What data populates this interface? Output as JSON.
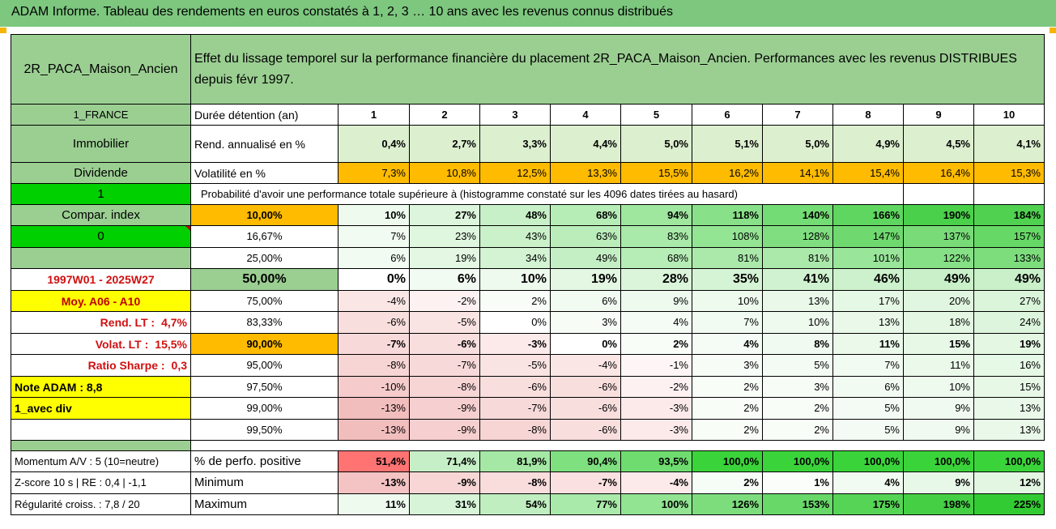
{
  "title": "ADAM Informe. Tableau des rendements en euros constatés à 1, 2, 3 … 10 ans avec les revenus connus distribués",
  "fund_name": "2R_PACA_Maison_Ancien",
  "description": "Effet du lissage temporel sur la performance financière du placement 2R_PACA_Maison_Ancien. Performances avec les revenus DISTRIBUES depuis févr 1997.",
  "left_col": {
    "zone": "1_FRANCE",
    "category": "Immobilier",
    "type": "Dividende",
    "flag1": "1",
    "compar_index": "Compar. index",
    "flag0": "0",
    "period": "1997W01 - 2025W27",
    "moy": "Moy. A06 - A10",
    "rend_lt_label": "Rend. LT :",
    "rend_lt_value": "4,7%",
    "volat_lt_label": "Volat. LT :",
    "volat_lt_value": "15,5%",
    "sharpe_label": "Ratio Sharpe :",
    "sharpe_value": "0,3",
    "note": "Note ADAM : 8,8",
    "div": "1_avec div",
    "momentum": "Momentum A/V : 5 (10=neutre)",
    "zscore": "Z-score 10 s | RE : 0,4 | -1,1",
    "regularite": "Régularité croiss. : 7,8 / 20"
  },
  "header": {
    "duree_label": "Durée détention (an)",
    "years": [
      "1",
      "2",
      "3",
      "4",
      "5",
      "6",
      "7",
      "8",
      "9",
      "10"
    ],
    "rend_label": "Rend. annualisé en %",
    "rend": [
      "0,4%",
      "2,7%",
      "3,3%",
      "4,4%",
      "5,0%",
      "5,1%",
      "5,0%",
      "4,9%",
      "4,5%",
      "4,1%"
    ],
    "vol_label": "Volatilité en %",
    "vol": [
      "7,3%",
      "10,8%",
      "12,5%",
      "13,3%",
      "15,5%",
      "16,2%",
      "14,1%",
      "15,4%",
      "16,4%",
      "15,3%"
    ],
    "proba_label": "Probabilité d'avoir une performance totale supérieure à (histogramme constaté sur les 4096 dates tirées au hasard)"
  },
  "quantiles": [
    {
      "p": "10,00%",
      "v": [
        "10%",
        "27%",
        "48%",
        "68%",
        "94%",
        "118%",
        "140%",
        "166%",
        "190%",
        "184%"
      ],
      "bold": true,
      "pfill": "o",
      "bg": [
        "#eefaee",
        "#dcf5dc",
        "#c8f0c8",
        "#b6ecb6",
        "#9fe69f",
        "#88e188",
        "#74dc74",
        "#5fd65f",
        "#4ad04a",
        "#50d250"
      ]
    },
    {
      "p": "16,67%",
      "v": [
        "7%",
        "23%",
        "43%",
        "63%",
        "83%",
        "108%",
        "128%",
        "147%",
        "137%",
        "157%"
      ],
      "bold": false,
      "pfill": "",
      "bg": [
        "#f1fbf1",
        "#dff6df",
        "#cbf1cb",
        "#baedba",
        "#a9e9a9",
        "#93e493",
        "#80de80",
        "#6fd96f",
        "#78db78",
        "#66d866"
      ]
    },
    {
      "p": "25,00%",
      "v": [
        "6%",
        "19%",
        "34%",
        "49%",
        "68%",
        "81%",
        "81%",
        "101%",
        "122%",
        "133%"
      ],
      "bold": false,
      "pfill": "",
      "bg": [
        "#f2fbf2",
        "#e3f7e3",
        "#d3f3d3",
        "#c4efc4",
        "#b6ecb6",
        "#abe9ab",
        "#abe9ab",
        "#99e599",
        "#86e086",
        "#7ddd7d"
      ]
    },
    {
      "p": "50,00%",
      "v": [
        "0%",
        "6%",
        "10%",
        "19%",
        "28%",
        "35%",
        "41%",
        "46%",
        "49%",
        "49%"
      ],
      "bold": true,
      "pfill": "g",
      "big": true,
      "bg": [
        "#ffffff",
        "#f2fbf2",
        "#eefaee",
        "#e3f7e3",
        "#dbf5db",
        "#d5f3d5",
        "#d0f2d0",
        "#ccf1cc",
        "#c9f0c9",
        "#c9f0c9"
      ]
    },
    {
      "p": "75,00%",
      "v": [
        "-4%",
        "-2%",
        "2%",
        "6%",
        "9%",
        "10%",
        "13%",
        "17%",
        "20%",
        "27%"
      ],
      "bold": false,
      "pfill": "",
      "bg": [
        "#fbe6e6",
        "#fdf1f1",
        "#f8fdf8",
        "#f2fbf2",
        "#eefaee",
        "#eefaee",
        "#e9f8e9",
        "#e5f7e5",
        "#e1f6e1",
        "#dbf5db"
      ]
    },
    {
      "p": "83,33%",
      "v": [
        "-6%",
        "-5%",
        "0%",
        "3%",
        "4%",
        "7%",
        "10%",
        "13%",
        "18%",
        "24%"
      ],
      "bold": false,
      "pfill": "",
      "bg": [
        "#f9dede",
        "#fae3e3",
        "#ffffff",
        "#f7fcf7",
        "#f5fcf5",
        "#f1fbf1",
        "#eefaee",
        "#e9f8e9",
        "#e3f7e3",
        "#ddf5dd"
      ]
    },
    {
      "p": "90,00%",
      "v": [
        "-7%",
        "-6%",
        "-3%",
        "0%",
        "2%",
        "4%",
        "8%",
        "11%",
        "15%",
        "19%"
      ],
      "bold": true,
      "pfill": "o",
      "bg": [
        "#f8d9d9",
        "#f9dede",
        "#fceaea",
        "#ffffff",
        "#f8fdf8",
        "#f5fcf5",
        "#f0faf0",
        "#ebf9eb",
        "#e7f8e7",
        "#e3f7e3"
      ]
    },
    {
      "p": "95,00%",
      "v": [
        "-8%",
        "-7%",
        "-5%",
        "-4%",
        "-1%",
        "3%",
        "5%",
        "7%",
        "11%",
        "16%"
      ],
      "bold": false,
      "pfill": "",
      "bg": [
        "#f7d5d5",
        "#f8d9d9",
        "#fae3e3",
        "#fbe6e6",
        "#fef6f6",
        "#f7fcf7",
        "#f4fbf4",
        "#f1fbf1",
        "#ebf9eb",
        "#e6f8e6"
      ]
    },
    {
      "p": "97,50%",
      "v": [
        "-10%",
        "-8%",
        "-6%",
        "-6%",
        "-2%",
        "2%",
        "3%",
        "6%",
        "10%",
        "15%"
      ],
      "bold": false,
      "pfill": "",
      "bg": [
        "#f5cbcb",
        "#f7d5d5",
        "#f9dede",
        "#f9dede",
        "#fdf1f1",
        "#f8fdf8",
        "#f7fcf7",
        "#f2fbf2",
        "#eefaee",
        "#e7f8e7"
      ]
    },
    {
      "p": "99,00%",
      "v": [
        "-13%",
        "-9%",
        "-7%",
        "-6%",
        "-3%",
        "2%",
        "2%",
        "5%",
        "9%",
        "13%"
      ],
      "bold": false,
      "pfill": "",
      "bg": [
        "#f2bdbd",
        "#f6d0d0",
        "#f8d9d9",
        "#f9dede",
        "#fceaea",
        "#f8fdf8",
        "#f8fdf8",
        "#f4fbf4",
        "#f0faf0",
        "#e9f8e9"
      ]
    },
    {
      "p": "99,50%",
      "v": [
        "-13%",
        "-9%",
        "-8%",
        "-6%",
        "-3%",
        "2%",
        "2%",
        "5%",
        "9%",
        "13%"
      ],
      "bold": false,
      "pfill": "",
      "bg": [
        "#f2bdbd",
        "#f6d0d0",
        "#f7d5d5",
        "#f9dede",
        "#fceaea",
        "#f8fdf8",
        "#f8fdf8",
        "#f4fbf4",
        "#f0faf0",
        "#e9f8e9"
      ]
    }
  ],
  "bottom": {
    "pos_label": "% de perfo. positive",
    "pos": [
      "51,4%",
      "71,4%",
      "81,9%",
      "90,4%",
      "93,5%",
      "100,0%",
      "100,0%",
      "100,0%",
      "100,0%",
      "100,0%"
    ],
    "pos_bg": [
      "#ff7373",
      "#c7efc7",
      "#a5e8a5",
      "#7fe07f",
      "#6fdc6f",
      "#3ad43a",
      "#3ad43a",
      "#3ad43a",
      "#3ad43a",
      "#3ad43a"
    ],
    "min_label": "Minimum",
    "min": [
      "-13%",
      "-9%",
      "-8%",
      "-7%",
      "-4%",
      "2%",
      "1%",
      "4%",
      "9%",
      "12%"
    ],
    "min_bg": [
      "#f4c3c3",
      "#f8d6d6",
      "#f9dcdc",
      "#fae0e0",
      "#fceaea",
      "#f6fcf6",
      "#fafdfa",
      "#f1fbf1",
      "#e8f8e8",
      "#e2f6e2"
    ],
    "max_label": "Maximum",
    "max": [
      "11%",
      "31%",
      "54%",
      "77%",
      "100%",
      "126%",
      "153%",
      "175%",
      "198%",
      "225%"
    ],
    "max_bg": [
      "#eefaee",
      "#d8f4d8",
      "#c0eec0",
      "#a9e9a9",
      "#92e392",
      "#7ddd7d",
      "#68d868",
      "#56d456",
      "#45cf45",
      "#33cb33"
    ],
    "colors": {
      "green": "#9bcf92",
      "bright_green": "#00d000",
      "yellow": "#ffff00",
      "orange": "#ffbb00",
      "red_text": "#d01010"
    }
  }
}
